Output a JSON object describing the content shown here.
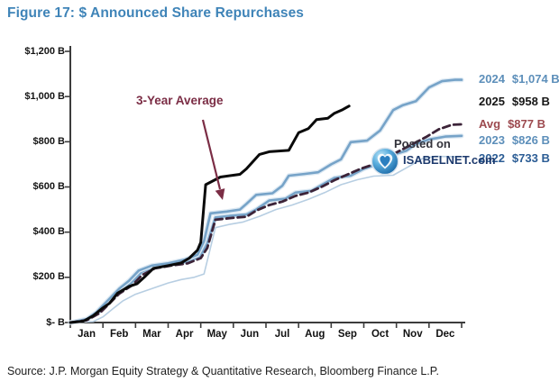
{
  "page": {
    "title": "Figure 17: $ Announced Share Repurchases",
    "source": "Source: J.P. Morgan Equity Strategy & Quantitative Research, Bloomberg Finance L.P."
  },
  "annotation": {
    "text": "3-Year Average"
  },
  "watermark": {
    "line1": "Posted on",
    "line2": "ISABELNET.com"
  },
  "colors": {
    "title_blue": "#3f84b8",
    "steel_blue_line": "#76a3c8",
    "light_blue_line": "#b7cee2",
    "avg_dashed_maroon": "#3c2338",
    "black_line": "#0a0a0a",
    "annotation_maroon": "#7b2d45",
    "axis_gray": "#3c3c3c",
    "watermark_navy": "#1d3a6d"
  },
  "chart_data": {
    "type": "line",
    "title": "Figure 17: $ Announced Share Repurchases",
    "xlabel": "",
    "ylabel": "",
    "x_unit": "months, Jan=0 through Dec=12 (cumulative $B announced)",
    "categories": [
      "Jan",
      "Feb",
      "Mar",
      "Apr",
      "May",
      "Jun",
      "Jul",
      "Aug",
      "Sep",
      "Oct",
      "Nov",
      "Dec"
    ],
    "ylim": [
      0,
      1200
    ],
    "grid": false,
    "legend_position": "right of line ends",
    "y_ticks": [
      {
        "value": 1200,
        "label": "$1,200 B"
      },
      {
        "value": 1000,
        "label": "$1,000 B"
      },
      {
        "value": 800,
        "label": "$800 B"
      },
      {
        "value": 600,
        "label": "$600 B"
      },
      {
        "value": 400,
        "label": "$400 B"
      },
      {
        "value": 200,
        "label": "$200 B"
      },
      {
        "value": 0,
        "label": "$- B"
      }
    ],
    "series": [
      {
        "name": "2024",
        "value_label": "$1,074 B",
        "end_value": 1074,
        "color": "#76a3c8",
        "text_color": "#5d8fba",
        "dash": null,
        "width": 2.6,
        "halo": true,
        "legend_y": 88,
        "points": [
          [
            0,
            0
          ],
          [
            0.5,
            15
          ],
          [
            0.8,
            45
          ],
          [
            1.1,
            90
          ],
          [
            1.5,
            150
          ],
          [
            1.8,
            185
          ],
          [
            2.1,
            230
          ],
          [
            2.5,
            252
          ],
          [
            3.0,
            262
          ],
          [
            3.5,
            278
          ],
          [
            3.9,
            300
          ],
          [
            4.1,
            360
          ],
          [
            4.3,
            483
          ],
          [
            4.8,
            491
          ],
          [
            5.2,
            500
          ],
          [
            5.4,
            525
          ],
          [
            5.7,
            565
          ],
          [
            6.2,
            572
          ],
          [
            6.5,
            605
          ],
          [
            6.7,
            650
          ],
          [
            7.2,
            658
          ],
          [
            7.6,
            665
          ],
          [
            8.0,
            700
          ],
          [
            8.3,
            722
          ],
          [
            8.6,
            798
          ],
          [
            9.1,
            805
          ],
          [
            9.5,
            850
          ],
          [
            9.9,
            940
          ],
          [
            10.2,
            962
          ],
          [
            10.6,
            980
          ],
          [
            11.0,
            1040
          ],
          [
            11.4,
            1068
          ],
          [
            11.8,
            1074
          ],
          [
            12,
            1074
          ]
        ]
      },
      {
        "name": "2025",
        "value_label": "$958 B",
        "end_value": 958,
        "color": "#0a0a0a",
        "text_color": "#161616",
        "dash": null,
        "width": 3,
        "halo": false,
        "legend_y": 113,
        "points": [
          [
            0,
            0
          ],
          [
            0.4,
            6
          ],
          [
            0.7,
            30
          ],
          [
            1.0,
            65
          ],
          [
            1.2,
            85
          ],
          [
            1.45,
            130
          ],
          [
            1.8,
            160
          ],
          [
            2.05,
            172
          ],
          [
            2.3,
            205
          ],
          [
            2.55,
            240
          ],
          [
            3.0,
            252
          ],
          [
            3.4,
            264
          ],
          [
            3.65,
            285
          ],
          [
            3.9,
            320
          ],
          [
            4.0,
            355
          ],
          [
            4.15,
            610
          ],
          [
            4.6,
            644
          ],
          [
            5.0,
            652
          ],
          [
            5.2,
            656
          ],
          [
            5.4,
            680
          ],
          [
            5.8,
            744
          ],
          [
            6.1,
            756
          ],
          [
            6.7,
            762
          ],
          [
            7.0,
            840
          ],
          [
            7.3,
            858
          ],
          [
            7.55,
            898
          ],
          [
            7.9,
            904
          ],
          [
            8.1,
            926
          ],
          [
            8.35,
            942
          ],
          [
            8.55,
            958
          ]
        ]
      },
      {
        "name": "Avg",
        "value_label": "$877 B",
        "end_value": 877,
        "color": "#3c2338",
        "text_color": "#9d4a4f",
        "dash": "8 4.5",
        "width": 2.8,
        "halo": false,
        "legend_y": 138,
        "points": [
          [
            0,
            0
          ],
          [
            0.5,
            10
          ],
          [
            0.9,
            42
          ],
          [
            1.2,
            85
          ],
          [
            1.5,
            128
          ],
          [
            1.9,
            165
          ],
          [
            2.2,
            210
          ],
          [
            2.6,
            240
          ],
          [
            3.1,
            252
          ],
          [
            3.6,
            262
          ],
          [
            4.0,
            285
          ],
          [
            4.2,
            330
          ],
          [
            4.45,
            455
          ],
          [
            4.9,
            462
          ],
          [
            5.4,
            468
          ],
          [
            5.7,
            495
          ],
          [
            6.1,
            520
          ],
          [
            6.5,
            535
          ],
          [
            6.9,
            560
          ],
          [
            7.3,
            575
          ],
          [
            7.7,
            600
          ],
          [
            8.1,
            630
          ],
          [
            8.5,
            655
          ],
          [
            8.9,
            680
          ],
          [
            9.3,
            700
          ],
          [
            9.7,
            730
          ],
          [
            10.1,
            760
          ],
          [
            10.5,
            790
          ],
          [
            10.9,
            820
          ],
          [
            11.3,
            855
          ],
          [
            11.7,
            875
          ],
          [
            12,
            877
          ]
        ]
      },
      {
        "name": "2023",
        "value_label": "$826 B",
        "end_value": 826,
        "color": "#76a3c8",
        "text_color": "#5d8fba",
        "dash": null,
        "width": 2.6,
        "halo": true,
        "legend_y": 156,
        "points": [
          [
            0,
            0
          ],
          [
            0.5,
            12
          ],
          [
            0.9,
            50
          ],
          [
            1.2,
            95
          ],
          [
            1.5,
            140
          ],
          [
            1.9,
            180
          ],
          [
            2.2,
            225
          ],
          [
            2.6,
            248
          ],
          [
            3.1,
            258
          ],
          [
            3.6,
            270
          ],
          [
            4.0,
            295
          ],
          [
            4.2,
            350
          ],
          [
            4.45,
            465
          ],
          [
            4.9,
            472
          ],
          [
            5.4,
            478
          ],
          [
            5.7,
            500
          ],
          [
            6.1,
            540
          ],
          [
            6.6,
            548
          ],
          [
            6.9,
            575
          ],
          [
            7.4,
            583
          ],
          [
            7.7,
            608
          ],
          [
            8.1,
            640
          ],
          [
            8.6,
            650
          ],
          [
            9.0,
            680
          ],
          [
            9.4,
            700
          ],
          [
            9.8,
            738
          ],
          [
            10.3,
            760
          ],
          [
            10.6,
            790
          ],
          [
            11.0,
            810
          ],
          [
            11.5,
            823
          ],
          [
            12,
            826
          ]
        ]
      },
      {
        "name": "2022",
        "value_label": "$733 B",
        "end_value": 733,
        "color": "#b7cee2",
        "text_color": "#2c5d95",
        "dash": null,
        "width": 1.6,
        "halo": false,
        "legend_y": 176,
        "points": [
          [
            0,
            0
          ],
          [
            0.7,
            4
          ],
          [
            1.0,
            25
          ],
          [
            1.3,
            60
          ],
          [
            1.6,
            95
          ],
          [
            2.0,
            125
          ],
          [
            2.5,
            150
          ],
          [
            3.0,
            175
          ],
          [
            3.4,
            190
          ],
          [
            3.8,
            200
          ],
          [
            4.1,
            215
          ],
          [
            4.45,
            420
          ],
          [
            4.9,
            435
          ],
          [
            5.3,
            445
          ],
          [
            5.8,
            470
          ],
          [
            6.3,
            500
          ],
          [
            6.8,
            520
          ],
          [
            7.3,
            545
          ],
          [
            7.8,
            575
          ],
          [
            8.3,
            610
          ],
          [
            8.8,
            632
          ],
          [
            9.3,
            648
          ],
          [
            9.9,
            652
          ],
          [
            10.4,
            692
          ],
          [
            10.8,
            726
          ],
          [
            11.2,
            735
          ],
          [
            12,
            733
          ]
        ]
      }
    ]
  }
}
